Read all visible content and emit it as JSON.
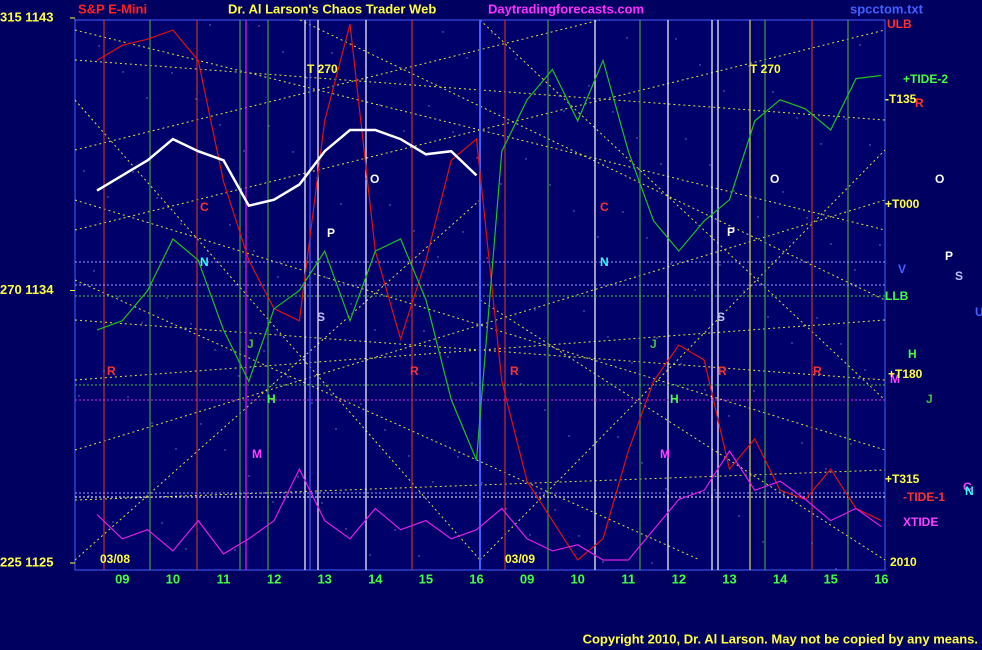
{
  "chart_data": {
    "type": "line",
    "title": "Dr. Al Larson's Chaos Trader Web",
    "subtitle": "S&P E-Mini",
    "site": "Daytradingforecasts.com",
    "file": "spcctom.txt",
    "copyright": "Copyright 2010, Dr. Al Larson. May not be copied by any means.",
    "categories": [
      null,
      "09",
      null,
      "10",
      null,
      "11",
      null,
      "12",
      null,
      "13",
      null,
      "14",
      null,
      "15",
      null,
      "16",
      null,
      "09",
      null,
      "10",
      null,
      "11",
      null,
      "12",
      null,
      "13",
      null,
      "14",
      null,
      "15",
      null,
      "16"
    ],
    "ylim": [
      1125,
      1143
    ],
    "yticks": [
      {
        "value": 1143,
        "label": "315 1143"
      },
      {
        "value": 1134,
        "label": "270 1134"
      },
      {
        "value": 1125,
        "label": "225 1125"
      }
    ],
    "series": [
      {
        "color": "#e01010",
        "values": [
          1141.6,
          1142.1,
          1142.3,
          1142.6,
          1141.6,
          1137.6,
          1135.0,
          1133.4,
          1133.0,
          1139.6,
          1142.8,
          1135.3,
          1132.4,
          1135.0,
          1138.3,
          1139.0,
          1131.0,
          1127.7,
          1126.4,
          1125.1,
          1125.8,
          1128.7,
          1131.0,
          1132.2,
          1131.7,
          1128.1,
          1129.1,
          1127.4,
          1127.1,
          1128.1,
          1126.8,
          1126.4
        ]
      },
      {
        "color": "#20c020",
        "values": [
          1132.7,
          1133.0,
          1134.0,
          1135.7,
          1135.0,
          1132.7,
          1131.0,
          1133.4,
          1134.0,
          1135.3,
          1133.0,
          1135.3,
          1135.7,
          1133.7,
          1130.4,
          1128.4,
          1138.6,
          1140.3,
          1141.3,
          1139.6,
          1141.6,
          1138.6,
          1136.3,
          1135.3,
          1136.3,
          1137.0,
          1139.6,
          1140.3,
          1140.0,
          1139.3,
          1141.0,
          1141.1
        ]
      },
      {
        "color": "#e020e0",
        "values": [
          1126.6,
          1125.8,
          1126.1,
          1125.4,
          1126.4,
          1125.3,
          1125.8,
          1126.4,
          1128.1,
          1126.4,
          1125.8,
          1126.8,
          1126.1,
          1126.4,
          1125.8,
          1126.1,
          1126.8,
          1125.8,
          1125.4,
          1125.6,
          1125.1,
          1125.1,
          1126.1,
          1127.1,
          1127.4,
          1128.7,
          1127.4,
          1127.7,
          1127.1,
          1126.4,
          1126.8,
          1126.2
        ]
      },
      {
        "color": "#ffffff",
        "values": [
          1137.3,
          1137.8,
          1138.3,
          1139.0,
          1138.6,
          1138.3,
          1136.8,
          1137.0,
          1137.5,
          1138.6,
          1139.3,
          1139.3,
          1139.0,
          1138.5,
          1138.6,
          1137.8,
          null,
          null,
          null,
          null,
          null,
          null,
          null,
          null,
          null,
          null,
          null,
          null,
          null,
          null,
          null,
          null
        ]
      }
    ],
    "annotations": [
      "T  270",
      "T  270",
      "O",
      "O",
      "O",
      "C",
      "C",
      "P",
      "P",
      "P",
      "S",
      "S",
      "S",
      "N",
      "N",
      "V",
      "U",
      "J",
      "J",
      "J",
      "H",
      "H",
      "H",
      "R",
      "R",
      "R",
      "R",
      "R",
      "R",
      "M",
      "M",
      "M",
      "C",
      "N",
      "ULB",
      "+TIDE-2",
      "-T135",
      "+T000",
      "LLB",
      "+T180",
      "+T315",
      "-TIDE-1",
      "XTIDE",
      "03/08",
      "03/09",
      "2010"
    ]
  }
}
